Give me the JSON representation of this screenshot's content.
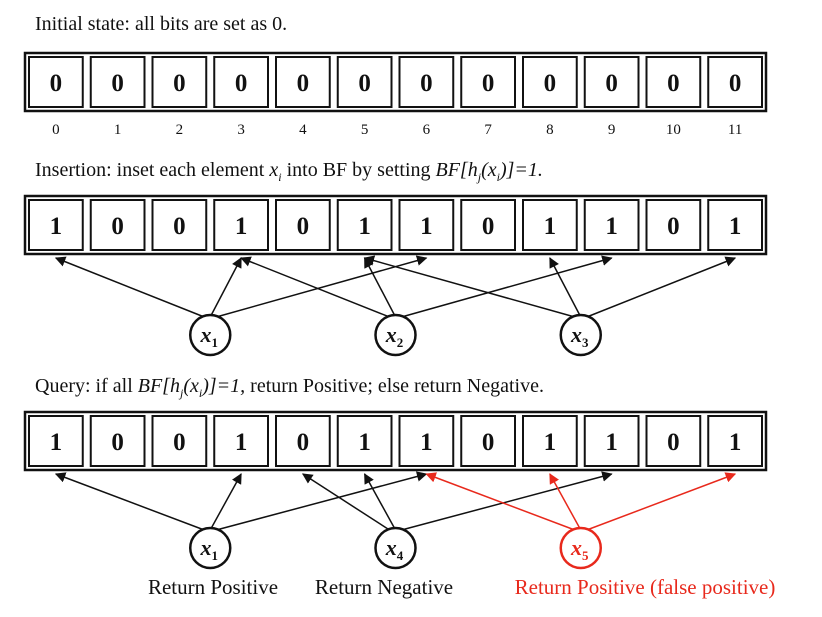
{
  "initial": {
    "caption": "Initial state: all bits are set as 0.",
    "bits": [
      "0",
      "0",
      "0",
      "0",
      "0",
      "0",
      "0",
      "0",
      "0",
      "0",
      "0",
      "0"
    ],
    "indices": [
      "0",
      "1",
      "2",
      "3",
      "4",
      "5",
      "6",
      "7",
      "8",
      "9",
      "10",
      "11"
    ]
  },
  "insertion": {
    "caption_plain": "Insertion: inset each element ",
    "caption_var": "x",
    "caption_var_sub": "i",
    "caption_mid": " into BF by setting ",
    "caption_formula": "BF[h",
    "caption_formula_sub": "j",
    "caption_formula_mid": "(x",
    "caption_formula_sub2": "i",
    "caption_formula_end": ")]=1.",
    "bits": [
      "1",
      "0",
      "0",
      "1",
      "0",
      "1",
      "1",
      "0",
      "1",
      "1",
      "0",
      "1"
    ],
    "elements": [
      {
        "var": "x",
        "sub": "1",
        "targets": [
          0,
          3,
          6
        ]
      },
      {
        "var": "x",
        "sub": "2",
        "targets": [
          3,
          5,
          9
        ]
      },
      {
        "var": "x",
        "sub": "3",
        "targets": [
          5,
          8,
          11
        ]
      }
    ]
  },
  "query": {
    "caption_plain": "Query: if all ",
    "caption_formula": "BF[h",
    "caption_formula_sub": "j",
    "caption_formula_mid": "(x",
    "caption_formula_sub2": "i",
    "caption_formula_end": ")]=1,",
    "caption_rest": " return Positive; else return Negative.",
    "bits": [
      "1",
      "0",
      "0",
      "1",
      "0",
      "1",
      "1",
      "0",
      "1",
      "1",
      "0",
      "1"
    ],
    "elements": [
      {
        "var": "x",
        "sub": "1",
        "targets": [
          0,
          3,
          6
        ],
        "result": "Return Positive",
        "color": "#111111"
      },
      {
        "var": "x",
        "sub": "4",
        "targets": [
          4,
          5,
          9
        ],
        "result": "Return Negative",
        "color": "#111111"
      },
      {
        "var": "x",
        "sub": "5",
        "targets": [
          6,
          8,
          11
        ],
        "result": "Return Positive (false positive)",
        "color": "#e8291c"
      }
    ]
  }
}
